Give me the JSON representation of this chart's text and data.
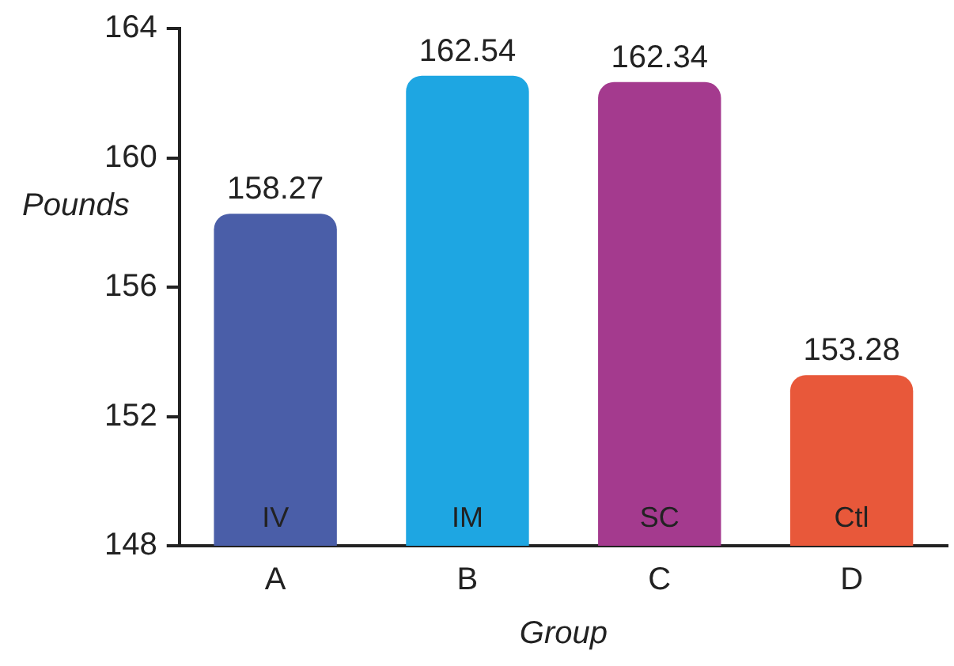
{
  "chart_data": {
    "type": "bar",
    "xlabel": "Group",
    "ylabel": "Pounds",
    "categories": [
      "A",
      "B",
      "C",
      "D"
    ],
    "values": [
      158.27,
      162.54,
      162.34,
      153.28
    ],
    "colors": [
      "#4a5ea8",
      "#1ea6e2",
      "#a43a8e",
      "#e8583a"
    ],
    "ylim": [
      148,
      164
    ],
    "yticks": [
      148,
      152,
      156,
      160,
      164
    ],
    "grid": false,
    "legend": false,
    "data_labels": true,
    "annotations": [
      "IV",
      "IM",
      "SC",
      "Ctl"
    ]
  }
}
